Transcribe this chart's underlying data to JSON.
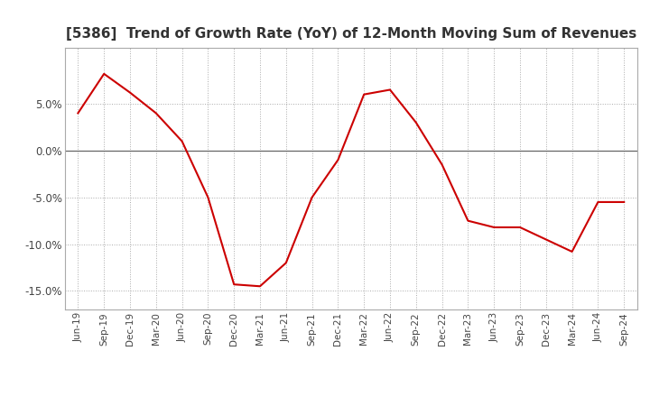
{
  "title": "[5386]  Trend of Growth Rate (YoY) of 12-Month Moving Sum of Revenues",
  "title_fontsize": 11,
  "line_color": "#cc0000",
  "background_color": "#ffffff",
  "grid_color": "#aaaaaa",
  "zero_line_color": "#666666",
  "ylim": [
    -0.17,
    0.11
  ],
  "yticks": [
    -0.15,
    -0.1,
    -0.05,
    0.0,
    0.05
  ],
  "labels": [
    "Jun-19",
    "Sep-19",
    "Dec-19",
    "Mar-20",
    "Jun-20",
    "Sep-20",
    "Dec-20",
    "Mar-21",
    "Jun-21",
    "Sep-21",
    "Dec-21",
    "Mar-22",
    "Jun-22",
    "Sep-22",
    "Dec-22",
    "Mar-23",
    "Jun-23",
    "Sep-23",
    "Dec-23",
    "Mar-24",
    "Jun-24",
    "Sep-24"
  ],
  "values": [
    0.04,
    0.082,
    0.062,
    0.04,
    0.01,
    -0.05,
    -0.143,
    -0.145,
    -0.12,
    -0.05,
    -0.01,
    0.06,
    0.065,
    0.03,
    -0.015,
    -0.075,
    -0.082,
    -0.082,
    -0.095,
    -0.108,
    -0.055,
    -0.055
  ]
}
